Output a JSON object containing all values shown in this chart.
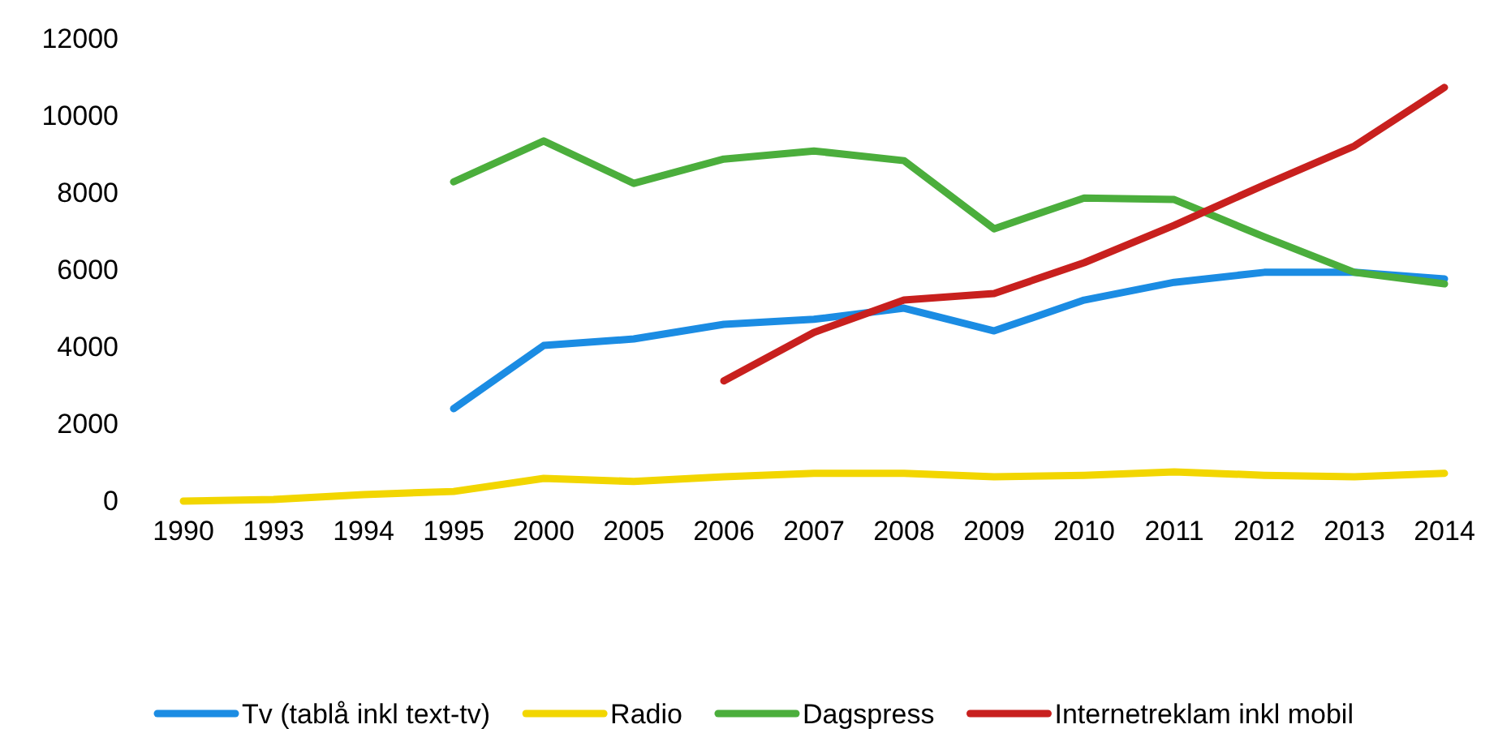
{
  "chart_data": {
    "type": "line",
    "categories": [
      "1990",
      "1993",
      "1994",
      "1995",
      "2000",
      "2005",
      "2006",
      "2007",
      "2008",
      "2009",
      "2010",
      "2011",
      "2012",
      "2013",
      "2014"
    ],
    "ylim": [
      0,
      12000
    ],
    "yticks": [
      0,
      2000,
      4000,
      6000,
      8000,
      10000,
      12000
    ],
    "legend": "bottom",
    "marker": "none",
    "line_style": "solid",
    "series": [
      {
        "name": "Tv (tablå inkl text-tv)",
        "color": "#1b8ce3",
        "values": [
          null,
          null,
          null,
          2400,
          4040,
          4210,
          4590,
          4720,
          5010,
          4420,
          5220,
          5680,
          5940,
          5940,
          5770
        ]
      },
      {
        "name": "Radio",
        "color": "#f2d600",
        "values": [
          0,
          40,
          170,
          250,
          590,
          510,
          630,
          720,
          720,
          630,
          670,
          760,
          670,
          630,
          720
        ]
      },
      {
        "name": "Dagspress",
        "color": "#4bae3c",
        "values": [
          null,
          null,
          null,
          8290,
          9350,
          8250,
          8880,
          9090,
          8840,
          7070,
          7870,
          7830,
          6860,
          5940,
          5640
        ]
      },
      {
        "name": "Internetreklam inkl mobil",
        "color": "#c8201e",
        "values": [
          null,
          null,
          null,
          null,
          null,
          null,
          3120,
          4380,
          5220,
          5390,
          6190,
          7160,
          8210,
          9220,
          10740
        ]
      }
    ]
  }
}
